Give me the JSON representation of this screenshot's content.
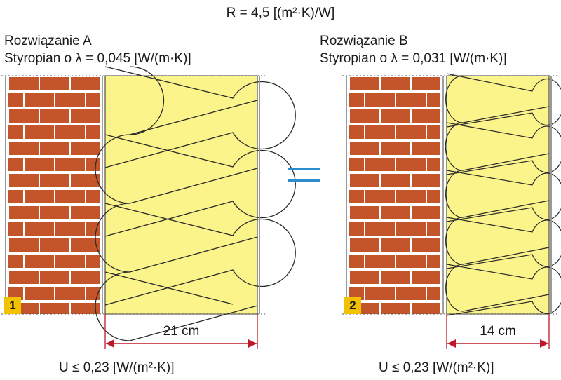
{
  "header": {
    "formula": "R = 4,5 [(m²·K)/W]"
  },
  "solution_a": {
    "title": "Rozwiązanie A",
    "material": "Styropian o λ = 0,045 [W/(m·K)]",
    "badge": "1",
    "thickness_label": "21 cm",
    "u_value": "U ≤ 0,23 [W/(m²·K)]"
  },
  "solution_b": {
    "title": "Rozwiązanie B",
    "material": "Styropian o λ = 0,031 [W/(m·K)]",
    "badge": "2",
    "thickness_label": "14 cm",
    "u_value": "U ≤ 0,23 [W/(m²·K)]"
  },
  "colors": {
    "brick": "#c4542a",
    "mortar": "#ffffff",
    "insulation": "#fbf48a",
    "badge": "#f2c200",
    "equals": "#2b8ccf",
    "dimension": "#c0182a"
  }
}
